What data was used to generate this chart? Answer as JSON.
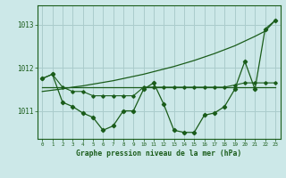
{
  "x": [
    0,
    1,
    2,
    3,
    4,
    5,
    6,
    7,
    8,
    9,
    10,
    11,
    12,
    13,
    14,
    15,
    16,
    17,
    18,
    19,
    20,
    21,
    22,
    23
  ],
  "series_jagged": [
    1011.75,
    1011.85,
    1011.2,
    1011.1,
    1010.95,
    1010.85,
    1010.55,
    1010.65,
    1011.0,
    1011.0,
    1011.5,
    1011.65,
    1011.15,
    1010.55,
    1010.5,
    1010.5,
    1010.9,
    1010.95,
    1011.1,
    1011.5,
    1012.15,
    1011.5,
    1012.9,
    1013.1
  ],
  "series_smooth": [
    1011.75,
    1011.85,
    1011.55,
    1011.45,
    1011.45,
    1011.35,
    1011.35,
    1011.35,
    1011.35,
    1011.35,
    1011.55,
    1011.55,
    1011.55,
    1011.55,
    1011.55,
    1011.55,
    1011.55,
    1011.55,
    1011.55,
    1011.6,
    1011.65,
    1011.65,
    1011.65,
    1011.65
  ],
  "line_flat": [
    1011.55,
    1011.55,
    1011.55,
    1011.55,
    1011.55,
    1011.55,
    1011.55,
    1011.55,
    1011.55,
    1011.55,
    1011.55,
    1011.55,
    1011.55,
    1011.55,
    1011.55,
    1011.55,
    1011.55,
    1011.55,
    1011.55,
    1011.55,
    1011.55,
    1011.55,
    1011.55,
    1011.55
  ],
  "line_trend": [
    1011.45,
    1011.48,
    1011.51,
    1011.55,
    1011.58,
    1011.62,
    1011.66,
    1011.7,
    1011.75,
    1011.8,
    1011.85,
    1011.91,
    1011.97,
    1012.03,
    1012.1,
    1012.17,
    1012.25,
    1012.33,
    1012.42,
    1012.51,
    1012.62,
    1012.73,
    1012.85,
    1013.1
  ],
  "bg_color": "#cce8e8",
  "grid_color": "#aacccc",
  "line_color": "#1a5c1a",
  "ylabel_ticks": [
    1011,
    1012,
    1013
  ],
  "ylim": [
    1010.35,
    1013.45
  ],
  "xlim": [
    -0.5,
    23.5
  ],
  "xlabel": "Graphe pression niveau de la mer (hPa)",
  "figsize": [
    3.2,
    2.0
  ],
  "dpi": 100
}
